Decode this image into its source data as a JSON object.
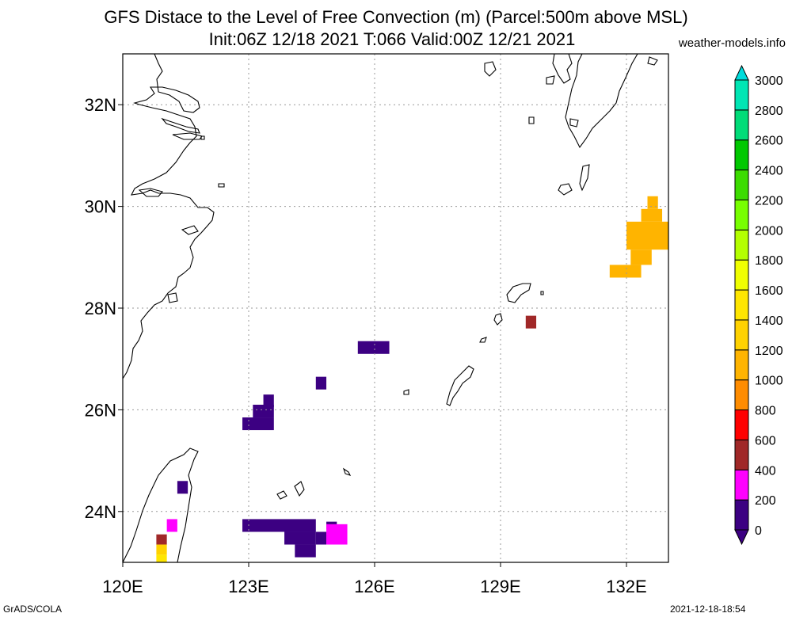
{
  "title": {
    "line1": "GFS Distace to the Level of Free Convection (m) (Parcel:500m above MSL)",
    "line2": "Init:06Z 12/18 2021 T:066 Valid:00Z 12/21 2021"
  },
  "credit": "weather-models.info",
  "footer": {
    "left": "GrADS/COLA",
    "right": "2021-12-18-18:54"
  },
  "map": {
    "lon_range": [
      120,
      133
    ],
    "lat_range": [
      23,
      33
    ],
    "grid": true,
    "lon_ticks": [
      {
        "value": 120,
        "label": "120E"
      },
      {
        "value": 123,
        "label": "123E"
      },
      {
        "value": 126,
        "label": "126E"
      },
      {
        "value": 129,
        "label": "129E"
      },
      {
        "value": 132,
        "label": "132E"
      }
    ],
    "lat_ticks": [
      {
        "value": 24,
        "label": "24N"
      },
      {
        "value": 26,
        "label": "26N"
      },
      {
        "value": 28,
        "label": "28N"
      },
      {
        "value": 30,
        "label": "30N"
      },
      {
        "value": 32,
        "label": "32N"
      }
    ]
  },
  "colorbar": {
    "levels": [
      "0",
      "200",
      "400",
      "600",
      "800",
      "1000",
      "1200",
      "1400",
      "1600",
      "1800",
      "2000",
      "2200",
      "2400",
      "2600",
      "2800",
      "3000"
    ],
    "colors": [
      "#3c0082",
      "#ff00ff",
      "#a02828",
      "#ff0000",
      "#ff8c00",
      "#ffb400",
      "#ffd200",
      "#ffe600",
      "#f0ff00",
      "#b4ff00",
      "#78ff00",
      "#3cdc00",
      "#00c800",
      "#00dc78",
      "#00e6b4",
      "#00dcdc"
    ]
  },
  "shaded_cells": [
    {
      "lon": 125.6,
      "lat": 27.1,
      "w": 0.75,
      "h": 0.25,
      "value": 100
    },
    {
      "lon": 124.6,
      "lat": 26.4,
      "w": 0.25,
      "h": 0.25,
      "value": 100
    },
    {
      "lon": 123.35,
      "lat": 26.05,
      "w": 0.25,
      "h": 0.25,
      "value": 100
    },
    {
      "lon": 123.1,
      "lat": 25.85,
      "w": 0.5,
      "h": 0.25,
      "value": 100
    },
    {
      "lon": 122.85,
      "lat": 25.6,
      "w": 0.75,
      "h": 0.25,
      "value": 100
    },
    {
      "lon": 121.3,
      "lat": 24.35,
      "w": 0.25,
      "h": 0.25,
      "value": 100
    },
    {
      "lon": 121.05,
      "lat": 23.6,
      "w": 0.25,
      "h": 0.25,
      "value": 300
    },
    {
      "lon": 122.85,
      "lat": 23.6,
      "w": 1.75,
      "h": 0.25,
      "value": 100
    },
    {
      "lon": 124.85,
      "lat": 23.65,
      "w": 0.25,
      "h": 0.15,
      "value": 100
    },
    {
      "lon": 123.85,
      "lat": 23.35,
      "w": 0.75,
      "h": 0.25,
      "value": 100
    },
    {
      "lon": 124.6,
      "lat": 23.35,
      "w": 0.25,
      "h": 0.25,
      "value": 100
    },
    {
      "lon": 124.85,
      "lat": 23.35,
      "w": 0.5,
      "h": 0.4,
      "value": 200
    },
    {
      "lon": 124.1,
      "lat": 23.1,
      "w": 0.5,
      "h": 0.25,
      "value": 100
    },
    {
      "lon": 120.8,
      "lat": 23.35,
      "w": 0.25,
      "h": 0.2,
      "value": 500
    },
    {
      "lon": 120.8,
      "lat": 23.15,
      "w": 0.25,
      "h": 0.2,
      "value": 1300
    },
    {
      "lon": 120.8,
      "lat": 23.0,
      "w": 0.25,
      "h": 0.15,
      "value": 1500
    },
    {
      "lon": 129.6,
      "lat": 27.6,
      "w": 0.25,
      "h": 0.25,
      "value": 500
    },
    {
      "lon": 131.6,
      "lat": 28.6,
      "w": 0.75,
      "h": 0.25,
      "value": 1100
    },
    {
      "lon": 132.1,
      "lat": 28.85,
      "w": 0.5,
      "h": 0.3,
      "value": 1100
    },
    {
      "lon": 132.0,
      "lat": 29.15,
      "w": 1.0,
      "h": 0.55,
      "value": 1100
    },
    {
      "lon": 132.35,
      "lat": 29.7,
      "w": 0.5,
      "h": 0.25,
      "value": 1100
    },
    {
      "lon": 132.5,
      "lat": 29.95,
      "w": 0.25,
      "h": 0.25,
      "value": 1100
    }
  ]
}
